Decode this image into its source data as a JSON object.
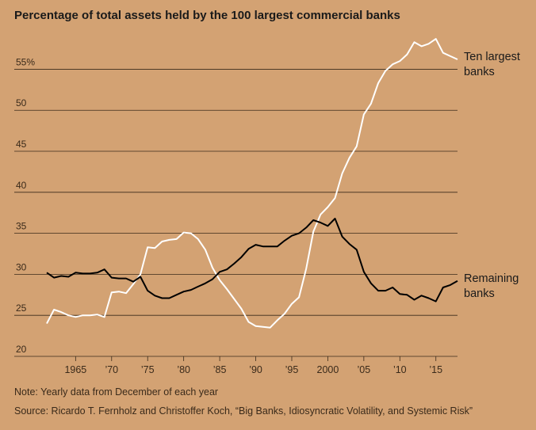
{
  "chart_data": {
    "type": "line",
    "title": "Percentage of total assets held by the 100 largest commercial banks",
    "note": "Note: Yearly data from December of each year",
    "source": "Source: Ricardo T. Fernholz and Christoffer Koch, “Big Banks, Idiosyncratic Volatility, and Systemic Risk”",
    "x": [
      1961,
      1962,
      1963,
      1964,
      1965,
      1966,
      1967,
      1968,
      1969,
      1970,
      1971,
      1972,
      1973,
      1974,
      1975,
      1976,
      1977,
      1978,
      1979,
      1980,
      1981,
      1982,
      1983,
      1984,
      1985,
      1986,
      1987,
      1988,
      1989,
      1990,
      1991,
      1992,
      1993,
      1994,
      1995,
      1996,
      1997,
      1998,
      1999,
      2000,
      2001,
      2002,
      2003,
      2004,
      2005,
      2006,
      2007,
      2008,
      2009,
      2010,
      2011,
      2012,
      2013,
      2014,
      2015,
      2016,
      2017,
      2018
    ],
    "series": [
      {
        "name": "Ten largest banks",
        "color": "#ffffff",
        "values": [
          24.0,
          25.7,
          25.4,
          25.0,
          24.8,
          25.0,
          25.0,
          25.1,
          24.8,
          27.8,
          27.9,
          27.7,
          28.8,
          30.0,
          33.3,
          33.2,
          34.0,
          34.2,
          34.3,
          35.1,
          35.0,
          34.3,
          33.0,
          30.8,
          29.3,
          28.2,
          27.0,
          25.8,
          24.2,
          23.7,
          23.6,
          23.5,
          24.4,
          25.2,
          26.4,
          27.2,
          30.7,
          35.2,
          37.3,
          38.2,
          39.3,
          42.3,
          44.2,
          45.6,
          49.5,
          50.8,
          53.3,
          54.8,
          55.6,
          56.0,
          56.8,
          58.3,
          57.8,
          58.1,
          58.7,
          57.0,
          56.6,
          56.2
        ]
      },
      {
        "name": "Remaining banks",
        "color": "#000000",
        "values": [
          30.2,
          29.6,
          29.8,
          29.7,
          30.2,
          30.1,
          30.1,
          30.2,
          30.6,
          29.6,
          29.5,
          29.5,
          29.1,
          29.7,
          28.0,
          27.4,
          27.1,
          27.1,
          27.5,
          27.9,
          28.1,
          28.5,
          28.9,
          29.4,
          30.3,
          30.6,
          31.3,
          32.1,
          33.1,
          33.6,
          33.4,
          33.4,
          33.4,
          34.1,
          34.7,
          35.0,
          35.7,
          36.6,
          36.3,
          35.9,
          36.8,
          34.6,
          33.7,
          33.0,
          30.3,
          28.9,
          28.0,
          28.0,
          28.4,
          27.6,
          27.5,
          26.9,
          27.4,
          27.1,
          26.7,
          28.4,
          28.7,
          29.2
        ]
      }
    ],
    "xlim": [
      1961,
      2018
    ],
    "xticks": [
      1965,
      {
        "value": 1970,
        "label": "’70"
      },
      {
        "value": 1975,
        "label": "’75"
      },
      {
        "value": 1980,
        "label": "’80"
      },
      {
        "value": 1985,
        "label": "’85"
      },
      {
        "value": 1990,
        "label": "’90"
      },
      {
        "value": 1995,
        "label": "’95"
      },
      2000,
      {
        "value": 2005,
        "label": "’05"
      },
      {
        "value": 2010,
        "label": "’10"
      },
      {
        "value": 2015,
        "label": "’15"
      }
    ],
    "ylim": [
      20,
      59
    ],
    "yticks": [
      20,
      25,
      30,
      35,
      40,
      45,
      50,
      {
        "value": 55,
        "label": "55%"
      }
    ],
    "grid": true
  }
}
